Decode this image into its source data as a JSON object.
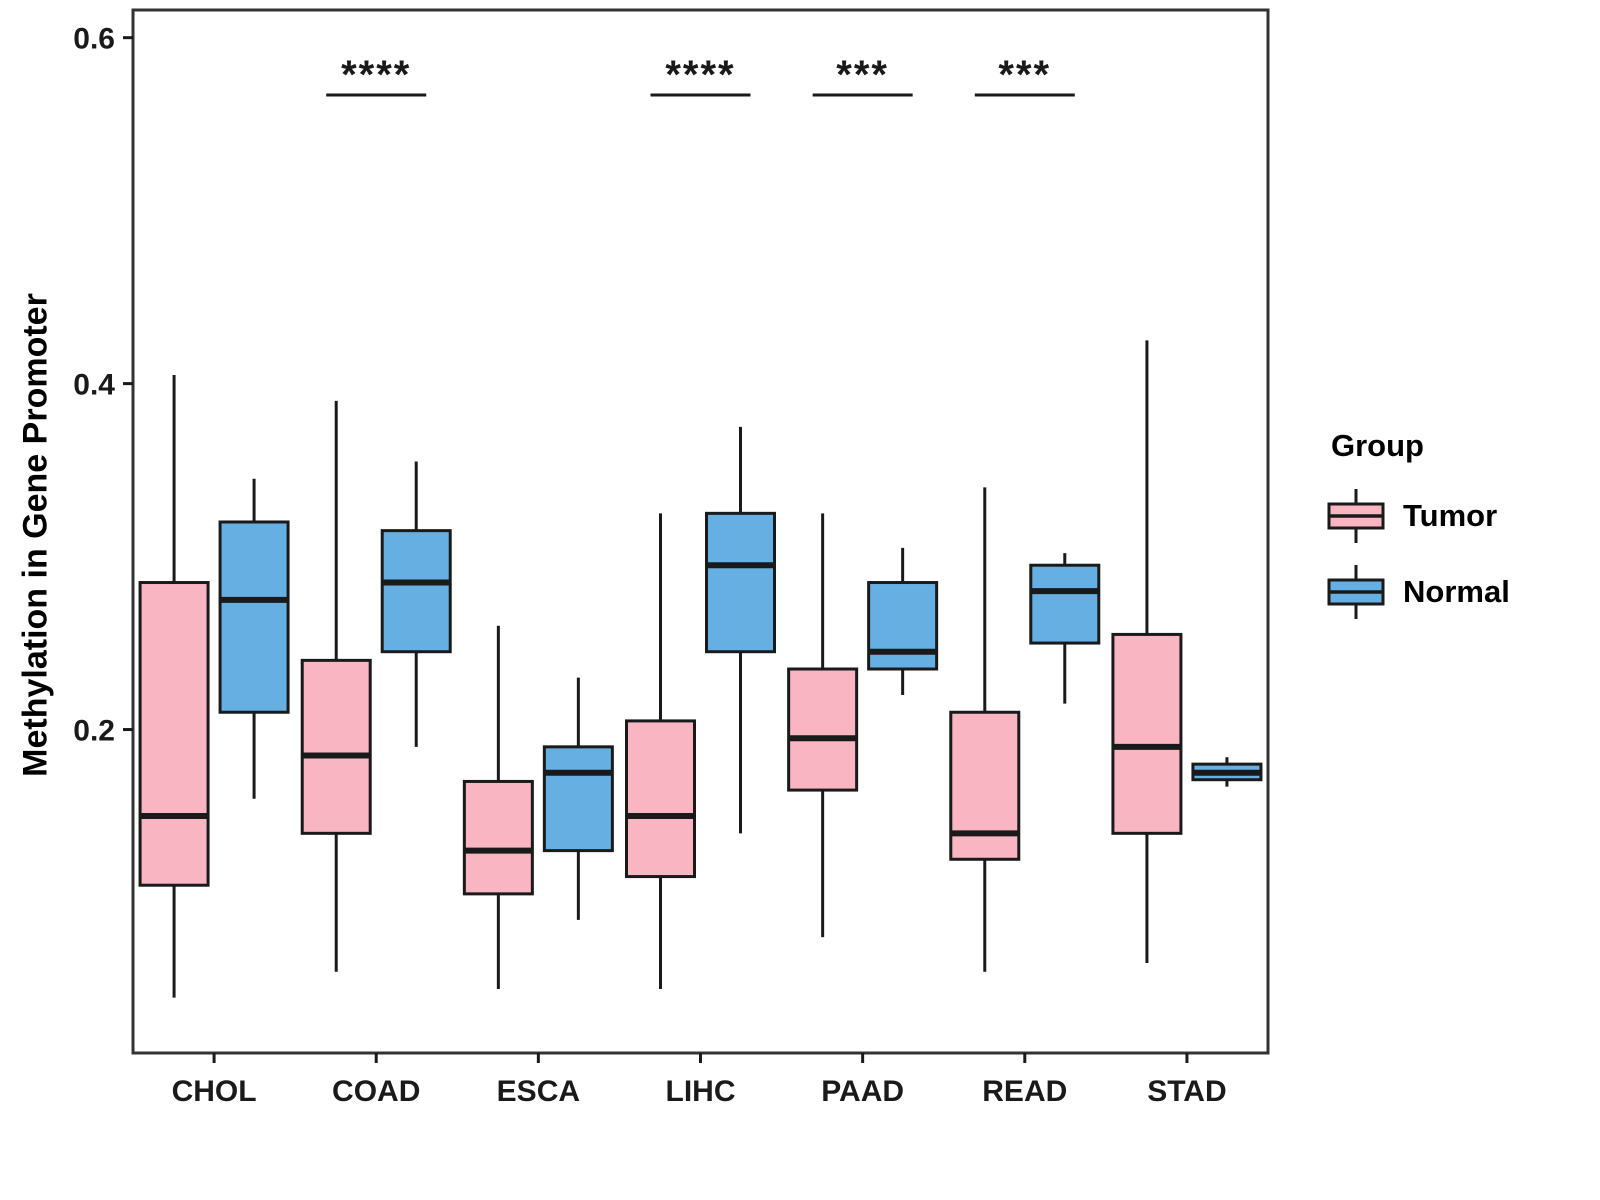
{
  "chart_data": {
    "type": "boxplot",
    "title": "",
    "xlabel": "",
    "ylabel": "Methylation in Gene Promoter",
    "categories": [
      "CHOL",
      "COAD",
      "ESCA",
      "LIHC",
      "PAAD",
      "READ",
      "STAD"
    ],
    "y_ticks": [
      {
        "value": 0.6,
        "label": "0.6"
      },
      {
        "value": 0.4,
        "label": "0.4"
      },
      {
        "value": 0.2,
        "label": "0.2"
      }
    ],
    "ylim": [
      0.013,
      0.616
    ],
    "grid": false,
    "legend": {
      "title": "Group",
      "position": "right",
      "entries": [
        {
          "label": "Tumor",
          "color": "#F9B5C2"
        },
        {
          "label": "Normal",
          "color": "#66AFE3"
        }
      ]
    },
    "significance": [
      {
        "category": "COAD",
        "label": "****"
      },
      {
        "category": "LIHC",
        "label": "****"
      },
      {
        "category": "PAAD",
        "label": "***"
      },
      {
        "category": "READ",
        "label": "***"
      }
    ],
    "style": {
      "box_border": "#1A1A1A",
      "panel_border": "#333333",
      "line_width": 3,
      "median_width": 6
    },
    "series": [
      {
        "name": "Tumor",
        "color": "#F9B5C2",
        "boxes": [
          {
            "category": "CHOL",
            "whisker_low": 0.045,
            "q1": 0.11,
            "median": 0.15,
            "q3": 0.285,
            "whisker_high": 0.405
          },
          {
            "category": "COAD",
            "whisker_low": 0.06,
            "q1": 0.14,
            "median": 0.185,
            "q3": 0.24,
            "whisker_high": 0.39
          },
          {
            "category": "ESCA",
            "whisker_low": 0.05,
            "q1": 0.105,
            "median": 0.13,
            "q3": 0.17,
            "whisker_high": 0.26
          },
          {
            "category": "LIHC",
            "whisker_low": 0.05,
            "q1": 0.115,
            "median": 0.15,
            "q3": 0.205,
            "whisker_high": 0.325
          },
          {
            "category": "PAAD",
            "whisker_low": 0.08,
            "q1": 0.165,
            "median": 0.195,
            "q3": 0.235,
            "whisker_high": 0.325
          },
          {
            "category": "READ",
            "whisker_low": 0.06,
            "q1": 0.125,
            "median": 0.14,
            "q3": 0.21,
            "whisker_high": 0.34
          },
          {
            "category": "STAD",
            "whisker_low": 0.065,
            "q1": 0.14,
            "median": 0.19,
            "q3": 0.255,
            "whisker_high": 0.425
          }
        ]
      },
      {
        "name": "Normal",
        "color": "#66AFE3",
        "boxes": [
          {
            "category": "CHOL",
            "whisker_low": 0.16,
            "q1": 0.21,
            "median": 0.275,
            "q3": 0.32,
            "whisker_high": 0.345
          },
          {
            "category": "COAD",
            "whisker_low": 0.19,
            "q1": 0.245,
            "median": 0.285,
            "q3": 0.315,
            "whisker_high": 0.355
          },
          {
            "category": "ESCA",
            "whisker_low": 0.09,
            "q1": 0.13,
            "median": 0.175,
            "q3": 0.19,
            "whisker_high": 0.23
          },
          {
            "category": "LIHC",
            "whisker_low": 0.14,
            "q1": 0.245,
            "median": 0.295,
            "q3": 0.325,
            "whisker_high": 0.375
          },
          {
            "category": "PAAD",
            "whisker_low": 0.22,
            "q1": 0.235,
            "median": 0.245,
            "q3": 0.285,
            "whisker_high": 0.305
          },
          {
            "category": "READ",
            "whisker_low": 0.215,
            "q1": 0.25,
            "median": 0.28,
            "q3": 0.295,
            "whisker_high": 0.302
          },
          {
            "category": "STAD",
            "whisker_low": 0.167,
            "q1": 0.171,
            "median": 0.175,
            "q3": 0.18,
            "whisker_high": 0.184
          }
        ]
      }
    ]
  }
}
